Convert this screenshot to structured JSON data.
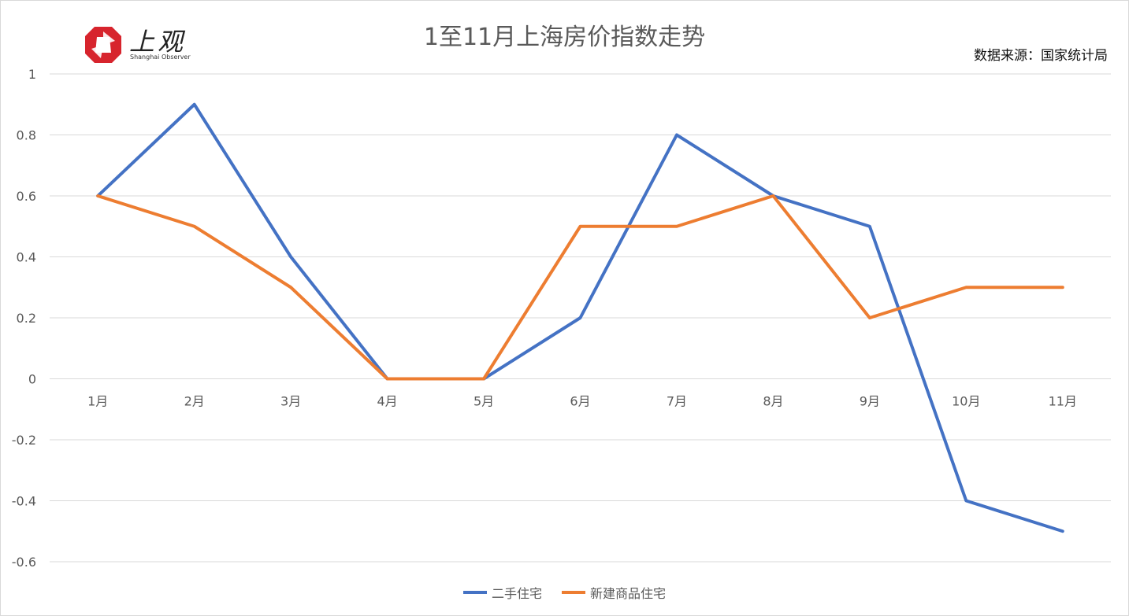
{
  "chart_data": {
    "type": "line",
    "title": "1至11月上海房价指数走势",
    "source": "数据来源：国家统计局",
    "categories": [
      "1月",
      "2月",
      "3月",
      "4月",
      "5月",
      "6月",
      "7月",
      "8月",
      "9月",
      "10月",
      "11月"
    ],
    "series": [
      {
        "name": "二手住宅",
        "color": "#4472C4",
        "values": [
          0.6,
          0.9,
          0.4,
          0,
          0,
          0.2,
          0.8,
          0.6,
          0.5,
          -0.4,
          -0.5
        ]
      },
      {
        "name": "新建商品住宅",
        "color": "#ED7D31",
        "values": [
          0.6,
          0.5,
          0.3,
          0,
          0,
          0.5,
          0.5,
          0.6,
          0.2,
          0.3,
          0.3
        ]
      }
    ],
    "yticks": [
      "1",
      "0.8",
      "0.6",
      "0.4",
      "0.2",
      "0",
      "-0.2",
      "-0.4",
      "-0.6"
    ],
    "ylim": [
      -0.6,
      1
    ],
    "grid": true,
    "legend": "bottom"
  },
  "logo": {
    "cn": "上观",
    "en": "Shanghai Observer"
  }
}
